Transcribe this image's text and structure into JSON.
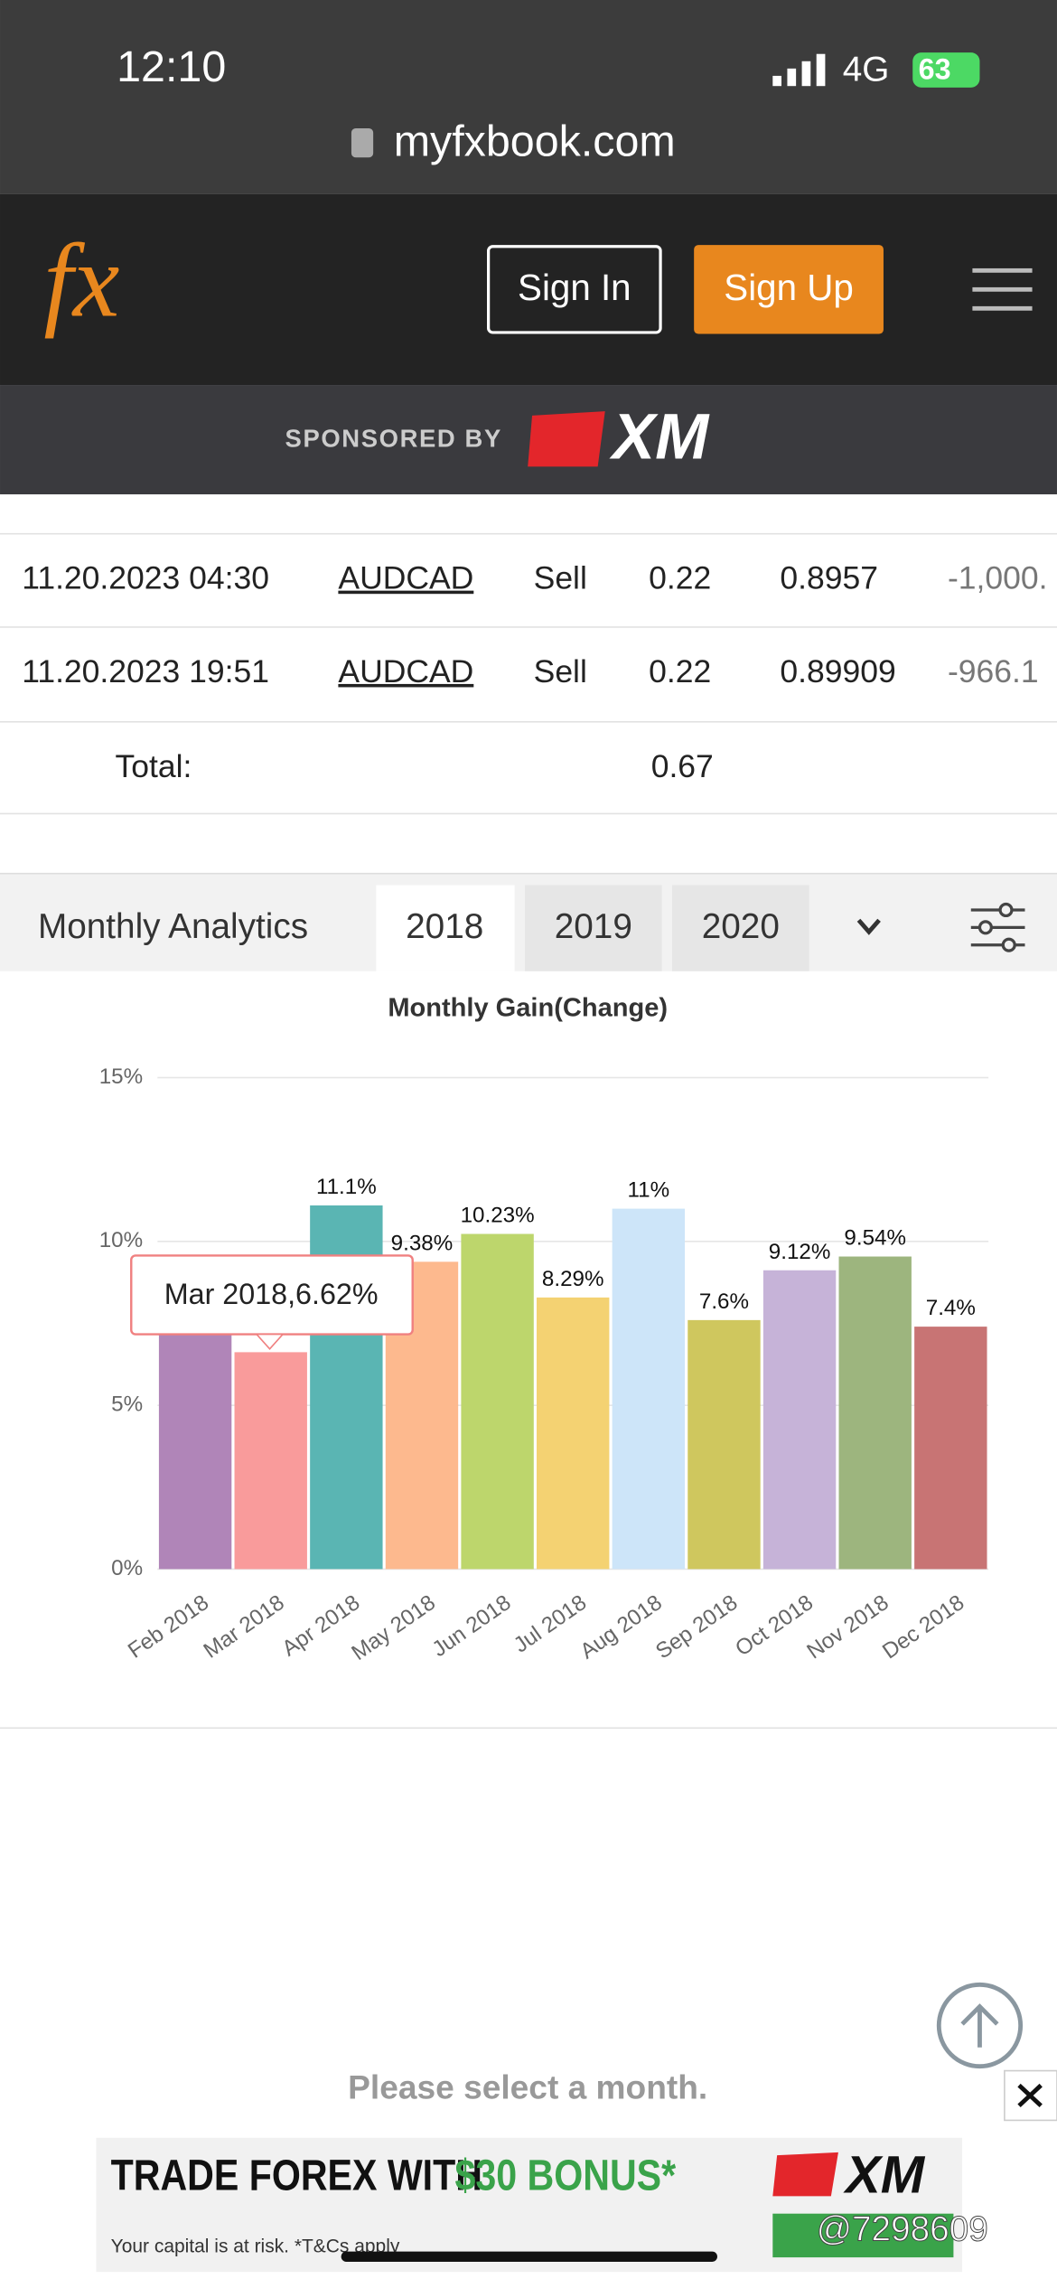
{
  "status": {
    "time": "12:10",
    "network": "4G",
    "battery": "63"
  },
  "browser": {
    "url": "myfxbook.com"
  },
  "nav": {
    "logo": "fx",
    "sign_in": "Sign In",
    "sign_up": "Sign Up"
  },
  "sponsor": {
    "label": "SPONSORED BY",
    "brand": "XM"
  },
  "table": {
    "rows": [
      [
        "11.20.2023 04:30",
        "AUDCAD",
        "Sell",
        "0.22",
        "0.8957",
        "-1,000."
      ],
      [
        "11.20.2023 19:51",
        "AUDCAD",
        "Sell",
        "0.22",
        "0.89909",
        "-966.1"
      ]
    ],
    "total_label": "Total:",
    "total": "0.67"
  },
  "tabs": {
    "title": "Monthly Analytics",
    "years": [
      "2018",
      "2019",
      "2020"
    ]
  },
  "chart_data": {
    "type": "bar",
    "title": "Monthly Gain(Change)",
    "categories": [
      "Feb 2018",
      "Mar 2018",
      "Apr 2018",
      "May 2018",
      "Jun 2018",
      "Jul 2018",
      "Aug 2018",
      "Sep 2018",
      "Oct 2018",
      "Nov 2018",
      "Dec 2018"
    ],
    "values": [
      8,
      6.62,
      11.1,
      9.38,
      10.23,
      8.29,
      11,
      7.6,
      9.12,
      9.54,
      7.4
    ],
    "value_labels": [
      null,
      null,
      "11.1%",
      "9.38%",
      "10.23%",
      "8.29%",
      "11%",
      "7.6%",
      "9.12%",
      "9.54%",
      "7.4%"
    ],
    "colors": [
      "#b085b8",
      "#f99b9b",
      "#5ab5b3",
      "#fdb98e",
      "#bdd66c",
      "#f4d272",
      "#cde5f9",
      "#cfc75e",
      "#c6b3d8",
      "#9db57e",
      "#c87474"
    ],
    "ylim": [
      0,
      15
    ],
    "yticks": [
      {
        "value": 0,
        "label": "0%"
      },
      {
        "value": 5,
        "label": "5%"
      },
      {
        "value": 10,
        "label": "10%"
      },
      {
        "value": 15,
        "label": "15%"
      }
    ],
    "grid": true,
    "tooltip": "Mar 2018,6.62%"
  },
  "footer": {
    "message": "Please select a month."
  },
  "ad": {
    "headline": "TRADE FOREX WITH",
    "bonus": "$30 BONUS*",
    "disclaimer": "Your capital is at risk. *T&Cs apply",
    "brand": "XM"
  },
  "watermark": "@7298609"
}
